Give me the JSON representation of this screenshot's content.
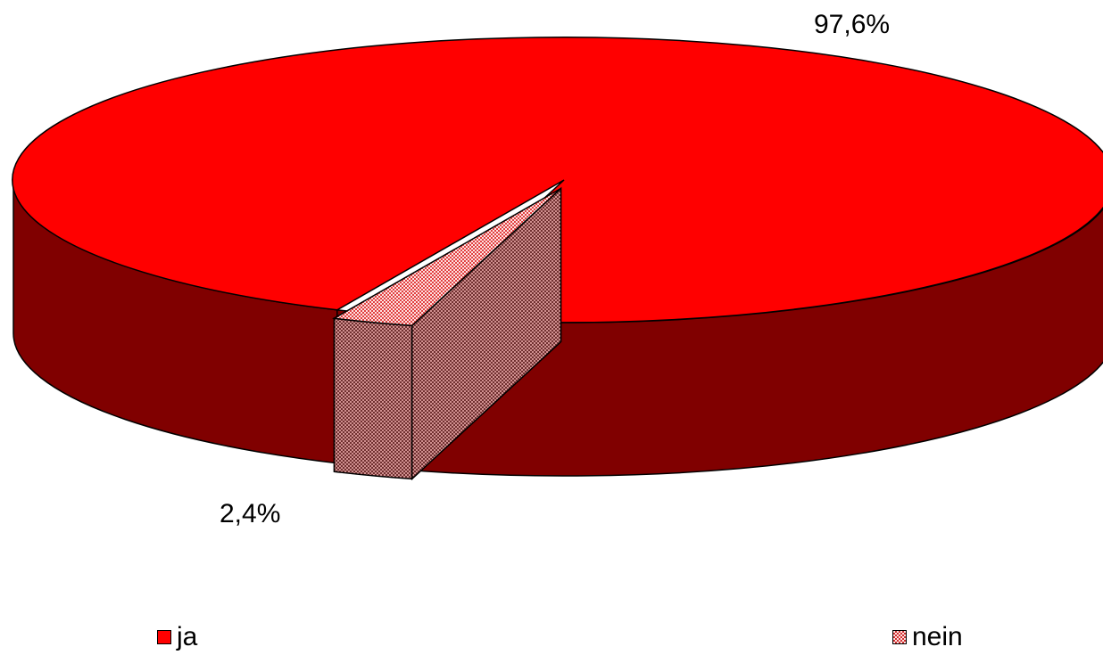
{
  "chart_data": {
    "type": "pie",
    "style": "3d-exploded",
    "categories": [
      "ja",
      "nein"
    ],
    "values": [
      97.6,
      2.4
    ],
    "labels": [
      "97,6%",
      "2,4%"
    ],
    "colors": {
      "ja_top": "#ff0000",
      "ja_side": "#800000",
      "nein_top": "#ffaaaa",
      "nein_side": "#a85050",
      "outline": "#000000"
    },
    "legend": {
      "placement": "bottom",
      "items": [
        {
          "label": "ja",
          "icon": "solid-red-swatch"
        },
        {
          "label": "nein",
          "icon": "checkered-pink-swatch"
        }
      ]
    }
  }
}
